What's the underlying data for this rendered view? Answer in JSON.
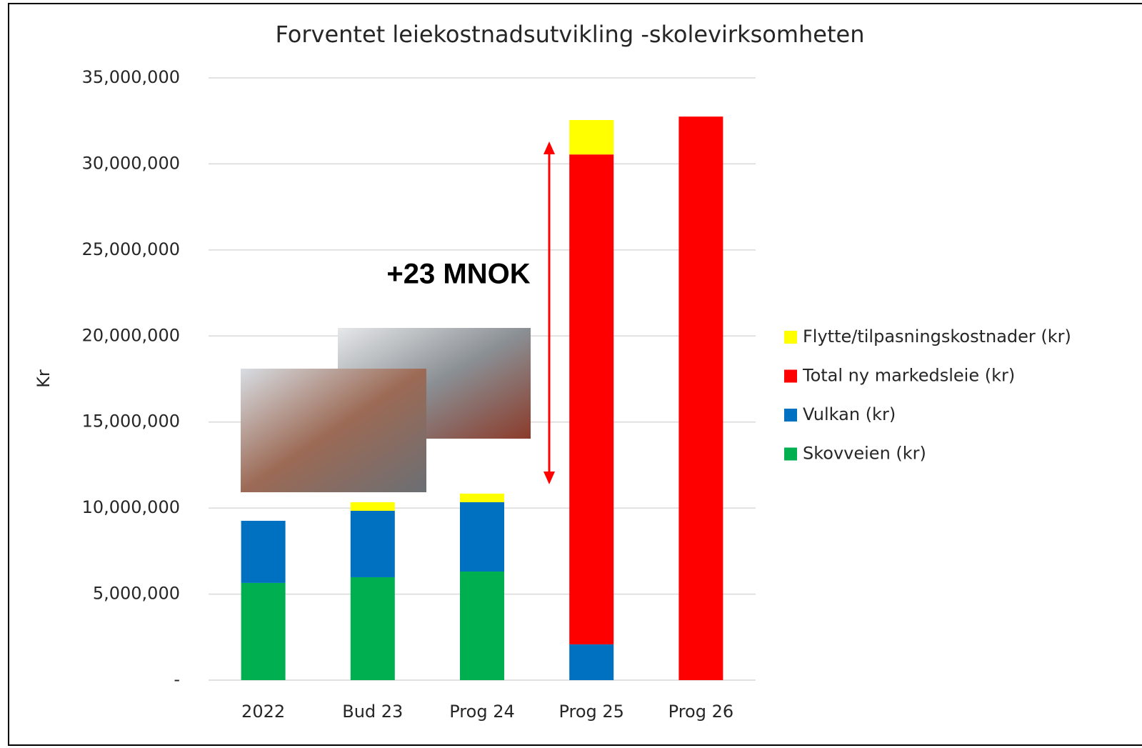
{
  "chart_data": {
    "type": "stacked-bar",
    "title": "Forventet leiekostnadsutvikling -skolevirksomheten",
    "y_label": "Kr",
    "annotation": "+23 MNOK",
    "categories": [
      "2022",
      "Bud 23",
      "Prog 24",
      "Prog 25",
      "Prog 26"
    ],
    "series": [
      {
        "name": "Skovveien (kr)",
        "color": "#00b050",
        "values": [
          5650000,
          5980000,
          6310000,
          null,
          null
        ]
      },
      {
        "name": "Vulkan (kr)",
        "color": "#0070c0",
        "values": [
          3610000,
          3860000,
          4030000,
          2080000,
          null
        ]
      },
      {
        "name": "Total ny markedsleie (kr)",
        "color": "#ff0000",
        "values": [
          null,
          null,
          null,
          28470000,
          32750000
        ]
      },
      {
        "name": "Flytte/tilpasningskostnader (kr)",
        "color": "#ffff00",
        "values": [
          null,
          500000,
          500000,
          2000000,
          null
        ]
      }
    ],
    "ylim": [
      0,
      35000000
    ],
    "yticks": [
      {
        "value": 0,
        "label": "-"
      },
      {
        "value": 5000000,
        "label": "5,000,000"
      },
      {
        "value": 10000000,
        "label": "10,000,000"
      },
      {
        "value": 15000000,
        "label": "15,000,000"
      },
      {
        "value": 20000000,
        "label": "20,000,000"
      },
      {
        "value": 25000000,
        "label": "25,000,000"
      },
      {
        "value": 30000000,
        "label": "30,000,000"
      },
      {
        "value": 35000000,
        "label": "35,000,000"
      }
    ],
    "grid": true,
    "legend": "right"
  }
}
